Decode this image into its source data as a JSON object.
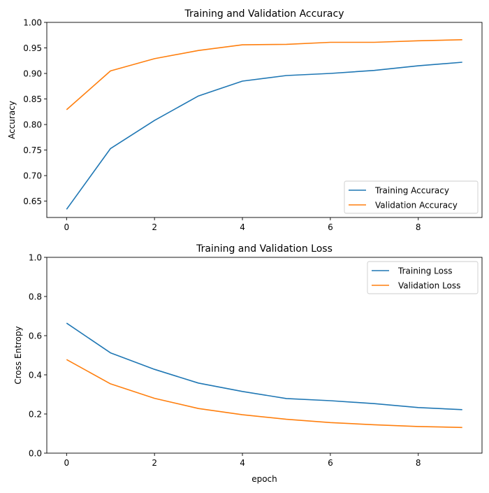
{
  "chart_data": [
    {
      "type": "line",
      "title": "Training and Validation Accuracy",
      "xlabel": "",
      "ylabel": "Accuracy",
      "xlim": [
        -0.45,
        9.45
      ],
      "ylim": [
        0.618,
        1.0
      ],
      "xticks": [
        0,
        2,
        4,
        6,
        8
      ],
      "yticks": [
        0.65,
        0.7,
        0.75,
        0.8,
        0.85,
        0.9,
        0.95,
        1.0
      ],
      "ytick_labels": [
        "0.65",
        "0.70",
        "0.75",
        "0.80",
        "0.85",
        "0.90",
        "0.95",
        "1.00"
      ],
      "grid": false,
      "legend_position": "lower-right",
      "x": [
        0,
        1,
        2,
        3,
        4,
        5,
        6,
        7,
        8,
        9
      ],
      "series": [
        {
          "name": "Training Accuracy",
          "color": "#1f77b4",
          "values": [
            0.634,
            0.753,
            0.808,
            0.856,
            0.885,
            0.896,
            0.9,
            0.906,
            0.915,
            0.922
          ]
        },
        {
          "name": "Validation Accuracy",
          "color": "#ff7f0e",
          "values": [
            0.829,
            0.905,
            0.929,
            0.945,
            0.956,
            0.957,
            0.961,
            0.961,
            0.964,
            0.966
          ]
        }
      ]
    },
    {
      "type": "line",
      "title": "Training and Validation Loss",
      "xlabel": "epoch",
      "ylabel": "Cross Entropy",
      "xlim": [
        -0.45,
        9.45
      ],
      "ylim": [
        0.0,
        1.0
      ],
      "xticks": [
        0,
        2,
        4,
        6,
        8
      ],
      "yticks": [
        0.0,
        0.2,
        0.4,
        0.6,
        0.8,
        1.0
      ],
      "ytick_labels": [
        "0.0",
        "0.2",
        "0.4",
        "0.6",
        "0.8",
        "1.0"
      ],
      "grid": false,
      "legend_position": "upper-right",
      "x": [
        0,
        1,
        2,
        3,
        4,
        5,
        6,
        7,
        8,
        9
      ],
      "series": [
        {
          "name": "Training Loss",
          "color": "#1f77b4",
          "values": [
            0.664,
            0.512,
            0.428,
            0.358,
            0.315,
            0.279,
            0.268,
            0.253,
            0.233,
            0.222
          ]
        },
        {
          "name": "Validation Loss",
          "color": "#ff7f0e",
          "values": [
            0.478,
            0.354,
            0.28,
            0.228,
            0.196,
            0.173,
            0.156,
            0.145,
            0.136,
            0.131
          ]
        }
      ]
    }
  ]
}
